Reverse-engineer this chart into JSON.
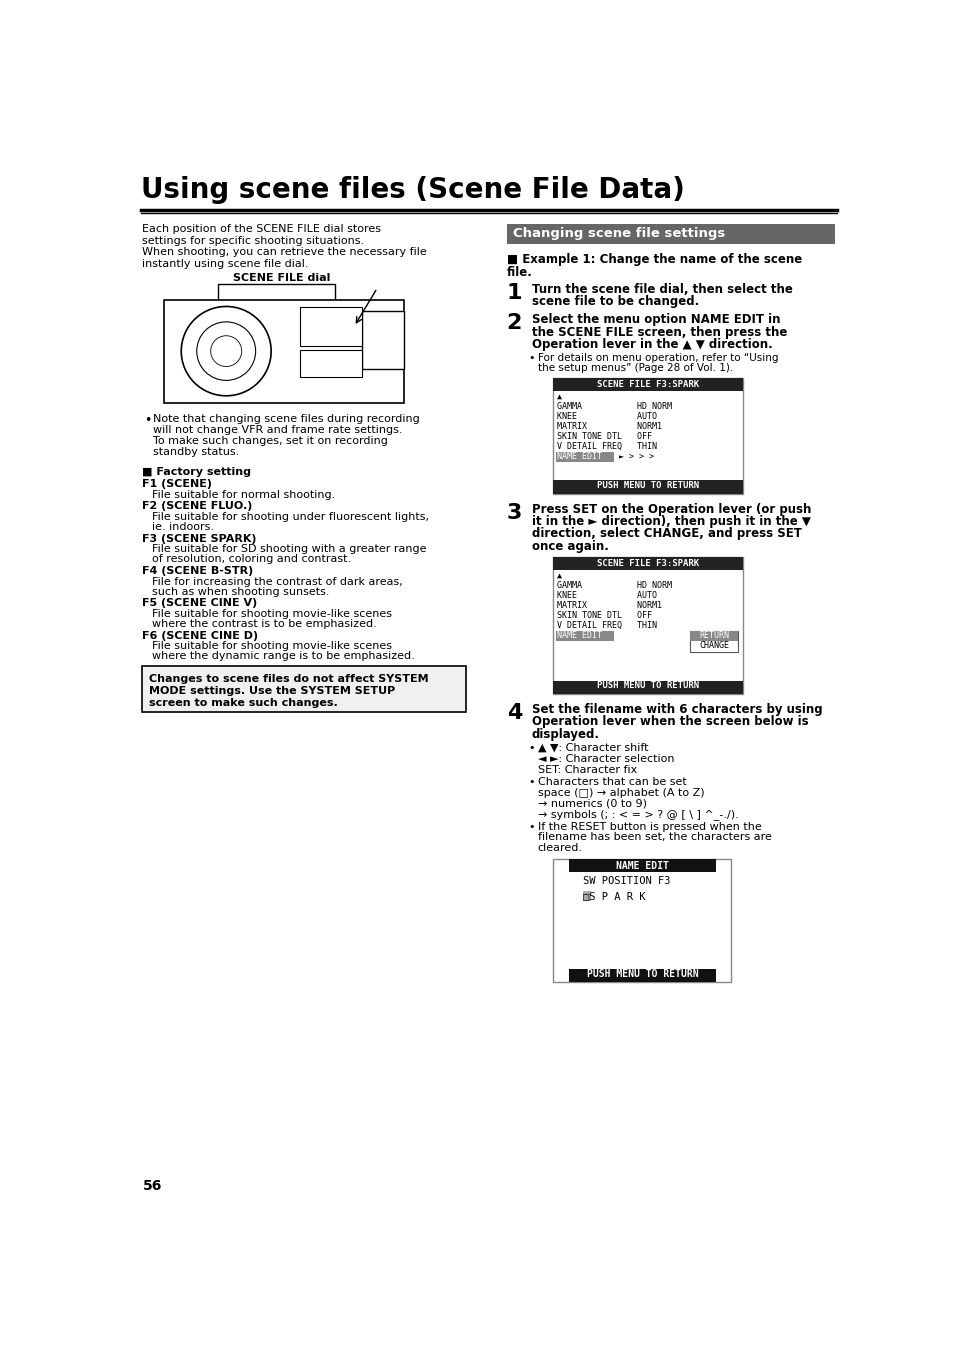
{
  "title": "Using scene files (Scene File Data)",
  "page_number": "56",
  "bg_color": "#ffffff",
  "section_header_bg": "#666666",
  "section_header_text": "#ffffff",
  "section_header": "Changing scene file settings",
  "intro_text": [
    "Each position of the SCENE FILE dial stores",
    "settings for specific shooting situations.",
    "When shooting, you can retrieve the necessary file",
    "instantly using scene file dial."
  ],
  "camera_label": "SCENE FILE dial",
  "bullet_note": [
    "Note that changing scene files during recording",
    "will not change VFR and frame rate settings.",
    "To make such changes, set it on recording",
    "standby status."
  ],
  "factory_heading": "■ Factory setting",
  "factory_items": [
    {
      "label": "F1 (SCENE)",
      "desc": [
        "File suitable for normal shooting."
      ]
    },
    {
      "label": "F2 (SCENE FLUO.)",
      "desc": [
        "File suitable for shooting under fluorescent lights,",
        "ie. indoors."
      ]
    },
    {
      "label": "F3 (SCENE SPARK)",
      "desc": [
        "File suitable for SD shooting with a greater range",
        "of resolution, coloring and contrast."
      ]
    },
    {
      "label": "F4 (SCENE B-STR)",
      "desc": [
        "File for increasing the contrast of dark areas,",
        "such as when shooting sunsets."
      ]
    },
    {
      "label": "F5 (SCENE CINE V)",
      "desc": [
        "File suitable for shooting movie-like scenes",
        "where the contrast is to be emphasized."
      ]
    },
    {
      "label": "F6 (SCENE CINE D)",
      "desc": [
        "File suitable for shooting movie-like scenes",
        "where the dynamic range is to be emphasized."
      ]
    }
  ],
  "warning_text": [
    "Changes to scene files do not affect SYSTEM",
    "MODE settings. Use the SYSTEM SETUP",
    "screen to make such changes."
  ],
  "example_title": [
    "■ Example 1: Change the name of the scene",
    "file."
  ],
  "step1_bold": [
    "Turn the scene file dial, then select the",
    "scene file to be changed."
  ],
  "step2_bold": [
    "Select the menu option NAME EDIT in",
    "the SCENE FILE screen, then press the",
    "Operation lever in the ▲ ▼ direction."
  ],
  "step2_sub": [
    "For details on menu operation, refer to “Using",
    "the setup menus” (Page 28 of Vol. 1)."
  ],
  "step3_bold": [
    "Press SET on the Operation lever (or push",
    "it in the ► direction), then push it in the ▼",
    "direction, select CHANGE, and press SET",
    "once again."
  ],
  "step4_bold": [
    "Set the filename with 6 characters by using",
    "Operation lever when the screen below is",
    "displayed."
  ],
  "step4_bullets": [
    [
      "▲ ▼: Character shift",
      "◄ ►: Character selection",
      "SET: Character fix"
    ],
    [
      "Characters that can be set",
      "space (□) → alphabet (A to Z)",
      "→ numerics (0 to 9)",
      "→ symbols (; : < = > ? @ [ \\ ] ^_-./)."
    ],
    [
      "If the RESET button is pressed when the",
      "filename has been set, the characters are",
      "cleared."
    ]
  ],
  "screen1": {
    "title": "SCENE FILE F3:SPARK",
    "body": [
      "▲",
      "GAMMA           HD NORM",
      "KNEE            AUTO",
      "MATRIX          NORM1",
      "SKIN TONE DTL   OFF",
      "V DETAIL FREQ   THIN"
    ],
    "highlighted": "NAME EDIT",
    "highlight_right": "► > > >",
    "footer": "PUSH MENU TO RETURN"
  },
  "screen2": {
    "title": "SCENE FILE F3:SPARK",
    "body": [
      "▲",
      "GAMMA           HD NORM",
      "KNEE            AUTO",
      "MATRIX          NORM1",
      "SKIN TONE DTL   OFF",
      "V DETAIL FREQ   THIN"
    ],
    "highlighted": "NAME EDIT",
    "submenu": [
      "RETURN",
      "CHANGE"
    ],
    "submenu_highlight": 0,
    "footer": "PUSH MENU TO RETURN"
  },
  "screen3": {
    "title": "NAME EDIT",
    "body": [
      "SW POSITION F3",
      "□S P A R K"
    ],
    "body_highlight_idx": 1,
    "footer": "PUSH MENU TO RETURN"
  }
}
